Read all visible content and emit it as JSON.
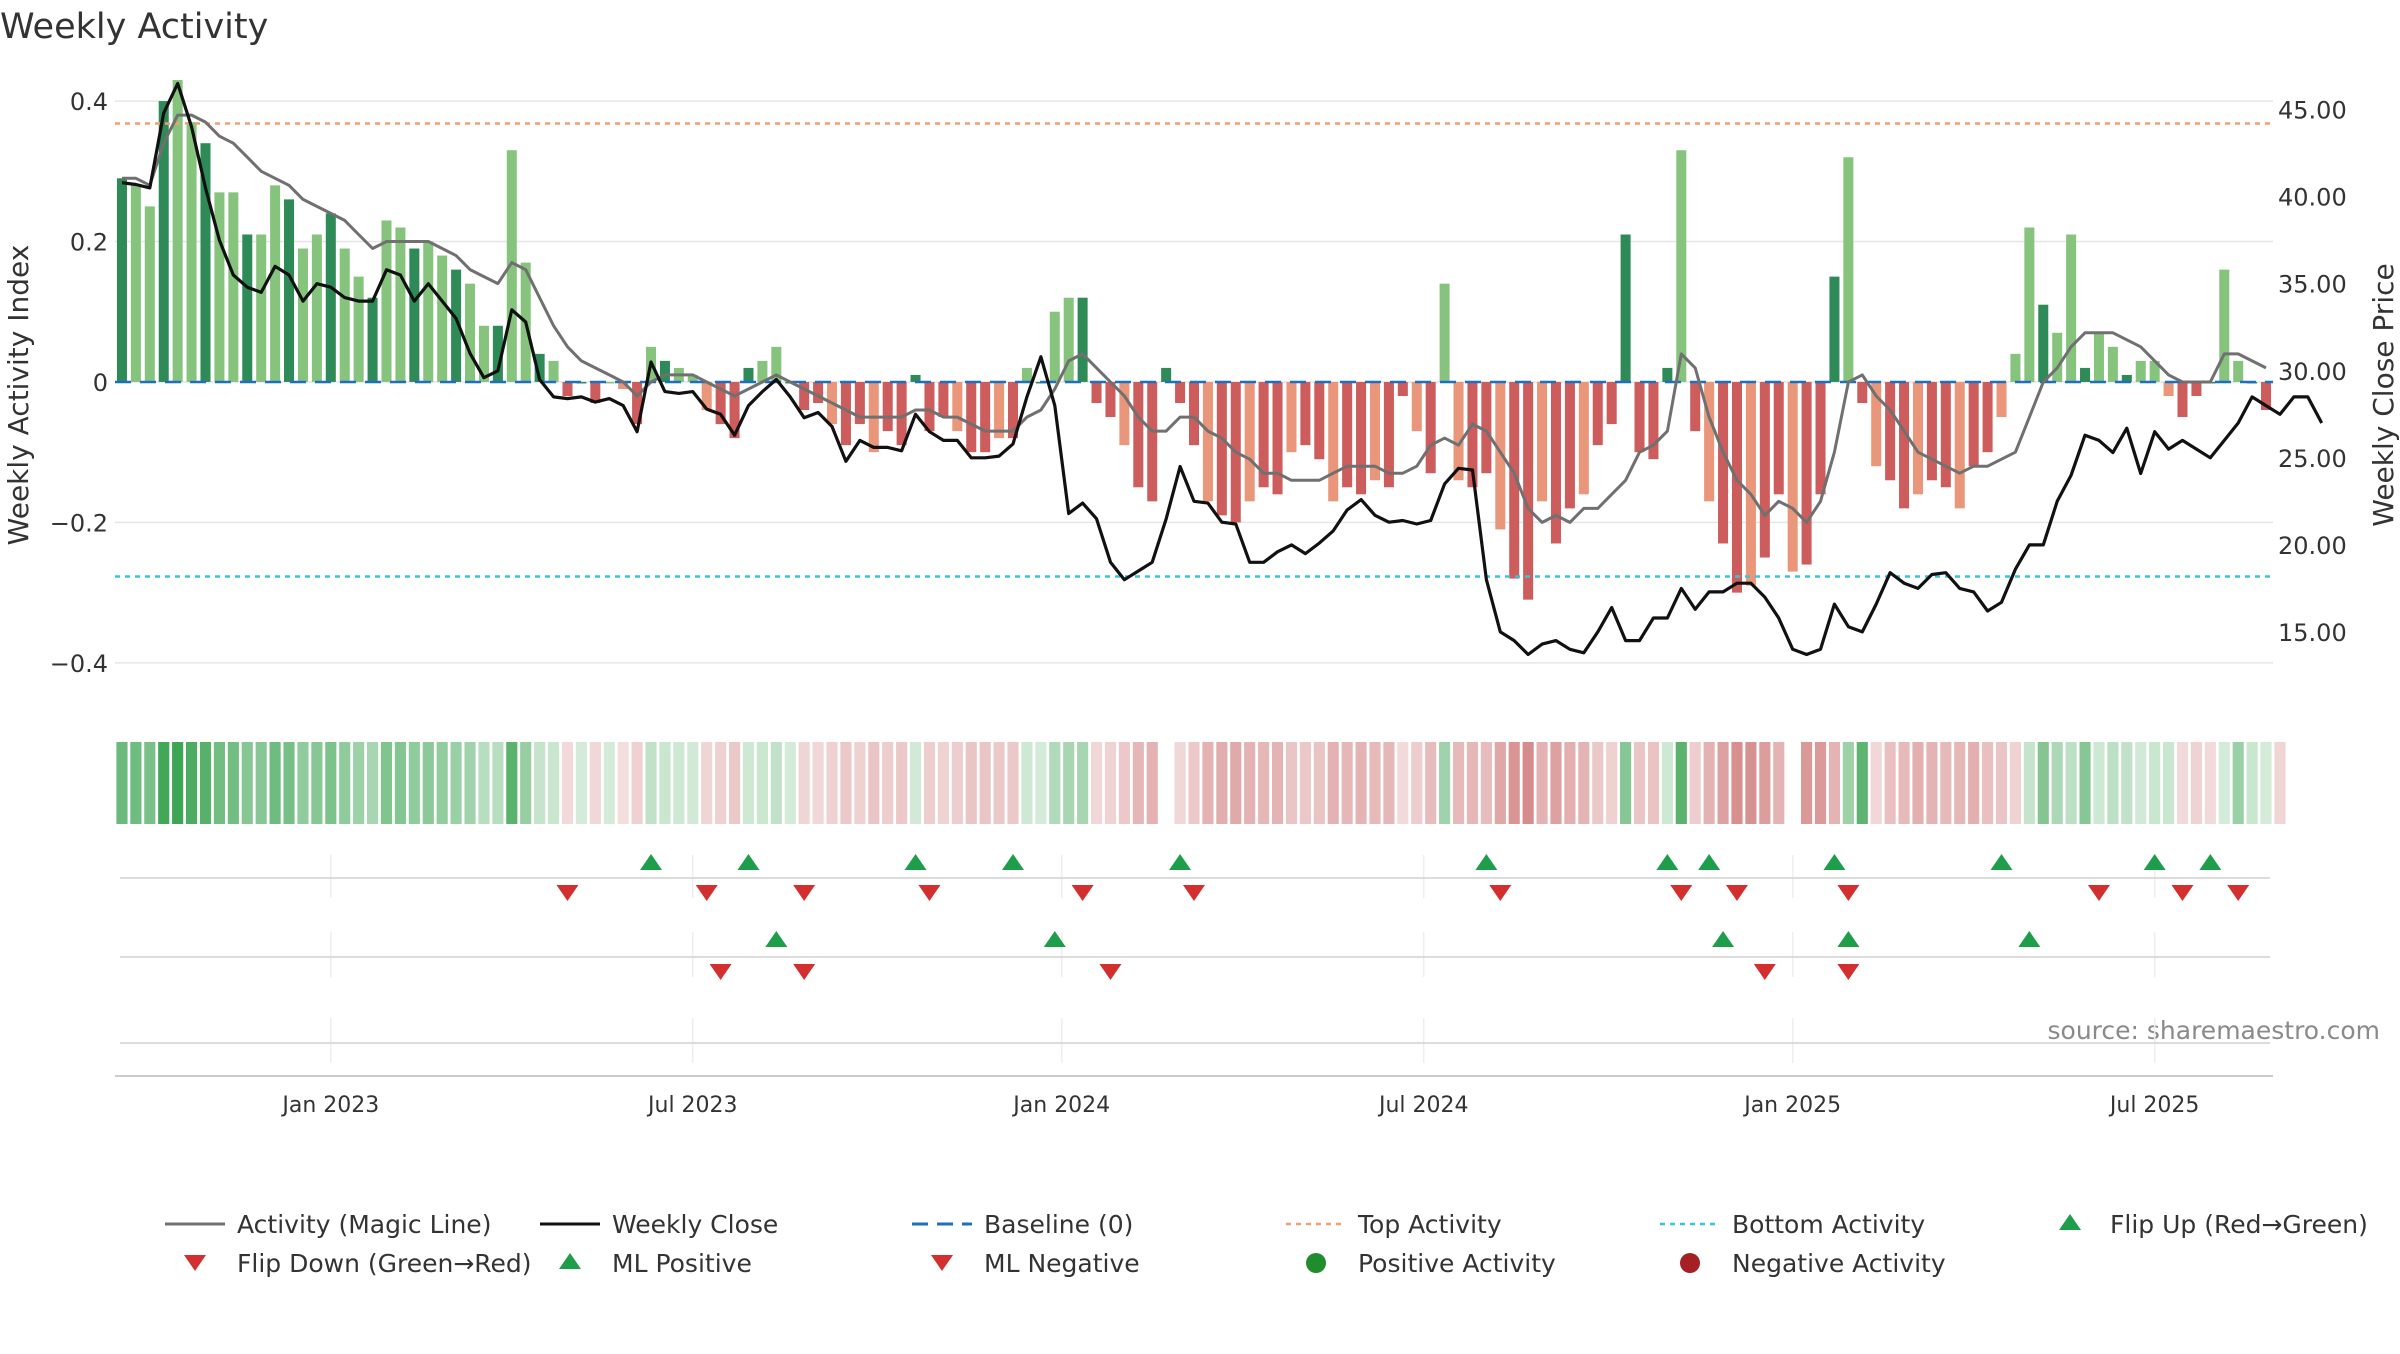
{
  "chart_data": {
    "type": "bar",
    "title": "Weekly Activity",
    "ylabel": "Weekly Activity Index",
    "ylabel_right": "Weekly Close Price",
    "ylim": [
      -0.47,
      0.43
    ],
    "ylim_right": [
      10.4,
      46.7
    ],
    "x_ticks": [
      {
        "label": "Jan 2023",
        "week": 15
      },
      {
        "label": "Jul 2023",
        "week": 41
      },
      {
        "label": "Jan 2024",
        "week": 67.5
      },
      {
        "label": "Jul 2024",
        "week": 93.5
      },
      {
        "label": "Jan 2025",
        "week": 120
      },
      {
        "label": "Jul 2025",
        "week": 146
      }
    ],
    "y_ticks": [
      {
        "value": 0.4,
        "label": "0.4"
      },
      {
        "value": 0.2,
        "label": "0.2"
      },
      {
        "value": 0,
        "label": "0"
      },
      {
        "value": -0.2,
        "label": "−0.2"
      },
      {
        "value": -0.4,
        "label": "−0.4"
      }
    ],
    "y_ticks_right": [
      {
        "value": 45,
        "label": "45.00"
      },
      {
        "value": 40,
        "label": "40.00"
      },
      {
        "value": 35,
        "label": "35.00"
      },
      {
        "value": 30,
        "label": "30.00"
      },
      {
        "value": 25,
        "label": "25.00"
      },
      {
        "value": 20,
        "label": "20.00"
      },
      {
        "value": 15,
        "label": "15.00"
      }
    ],
    "top_activity": 0.368,
    "bottom_activity": -0.277,
    "activity": [
      0.29,
      0.28,
      0.25,
      0.4,
      0.43,
      0.37,
      0.34,
      0.27,
      0.27,
      0.21,
      0.21,
      0.28,
      0.26,
      0.19,
      0.21,
      0.24,
      0.19,
      0.15,
      0.12,
      0.23,
      0.22,
      0.19,
      0.2,
      0.18,
      0.16,
      0.14,
      0.08,
      0.08,
      0.33,
      0.17,
      0.04,
      0.03,
      -0.02,
      0.0,
      -0.03,
      0.0,
      -0.01,
      -0.06,
      0.05,
      0.03,
      0.02,
      0.01,
      -0.04,
      -0.06,
      -0.08,
      0.02,
      0.03,
      0.05,
      0.0,
      -0.04,
      -0.03,
      -0.06,
      -0.09,
      -0.06,
      -0.1,
      -0.07,
      -0.09,
      0.01,
      -0.07,
      -0.05,
      -0.07,
      -0.1,
      -0.1,
      -0.08,
      -0.08,
      0.02,
      0.0,
      0.1,
      0.12,
      0.12,
      -0.03,
      -0.05,
      -0.09,
      -0.15,
      -0.17,
      0.02,
      -0.03,
      -0.09,
      -0.17,
      -0.19,
      -0.2,
      -0.17,
      -0.15,
      -0.16,
      -0.1,
      -0.09,
      -0.11,
      -0.17,
      -0.15,
      -0.16,
      -0.14,
      -0.15,
      -0.02,
      -0.07,
      -0.13,
      0.14,
      -0.14,
      -0.15,
      -0.13,
      -0.21,
      -0.28,
      -0.31,
      -0.17,
      -0.23,
      -0.18,
      -0.16,
      -0.09,
      -0.06,
      0.21,
      -0.1,
      -0.11,
      0.02,
      0.33,
      -0.07,
      -0.17,
      -0.23,
      -0.3,
      -0.29,
      -0.25,
      -0.16,
      -0.27,
      -0.26,
      -0.16,
      0.15,
      0.32,
      -0.03,
      -0.12,
      -0.14,
      -0.18,
      -0.16,
      -0.14,
      -0.15,
      -0.18,
      -0.12,
      -0.1,
      -0.05,
      0.04,
      0.22,
      0.11,
      0.07,
      0.21,
      0.02,
      0.07,
      0.05,
      0.01,
      0.03,
      0.03,
      -0.02,
      -0.05,
      -0.02,
      0.0,
      0.16,
      0.03,
      0.0,
      -0.04
    ],
    "magic_line": [
      0.29,
      0.29,
      0.28,
      0.34,
      0.38,
      0.38,
      0.37,
      0.35,
      0.34,
      0.32,
      0.3,
      0.29,
      0.28,
      0.26,
      0.25,
      0.24,
      0.23,
      0.21,
      0.19,
      0.2,
      0.2,
      0.2,
      0.2,
      0.19,
      0.18,
      0.16,
      0.15,
      0.14,
      0.17,
      0.16,
      0.12,
      0.08,
      0.05,
      0.03,
      0.02,
      0.01,
      0.0,
      -0.02,
      0.0,
      0.01,
      0.01,
      0.01,
      0.0,
      -0.01,
      -0.02,
      -0.01,
      0.0,
      0.01,
      0.0,
      -0.01,
      -0.02,
      -0.03,
      -0.04,
      -0.05,
      -0.05,
      -0.05,
      -0.05,
      -0.04,
      -0.04,
      -0.05,
      -0.05,
      -0.06,
      -0.07,
      -0.07,
      -0.07,
      -0.05,
      -0.04,
      -0.01,
      0.03,
      0.04,
      0.02,
      0.0,
      -0.02,
      -0.05,
      -0.07,
      -0.07,
      -0.05,
      -0.05,
      -0.07,
      -0.08,
      -0.1,
      -0.11,
      -0.13,
      -0.13,
      -0.14,
      -0.14,
      -0.14,
      -0.13,
      -0.12,
      -0.12,
      -0.12,
      -0.13,
      -0.13,
      -0.12,
      -0.09,
      -0.08,
      -0.09,
      -0.06,
      -0.07,
      -0.1,
      -0.13,
      -0.18,
      -0.2,
      -0.19,
      -0.2,
      -0.18,
      -0.18,
      -0.16,
      -0.14,
      -0.1,
      -0.09,
      -0.07,
      0.04,
      0.02,
      -0.05,
      -0.1,
      -0.14,
      -0.16,
      -0.19,
      -0.17,
      -0.18,
      -0.2,
      -0.17,
      -0.1,
      0.0,
      0.01,
      -0.02,
      -0.04,
      -0.07,
      -0.1,
      -0.11,
      -0.12,
      -0.13,
      -0.12,
      -0.12,
      -0.11,
      -0.1,
      -0.05,
      0.0,
      0.02,
      0.05,
      0.07,
      0.07,
      0.07,
      0.06,
      0.05,
      0.03,
      0.01,
      0.0,
      0.0,
      0.0,
      0.04,
      0.04,
      0.03,
      0.02
    ],
    "weekly_close": [
      40.8,
      40.7,
      40.5,
      44.8,
      46.5,
      44.0,
      40.5,
      37.5,
      35.5,
      34.8,
      34.5,
      36.0,
      35.5,
      34.0,
      35.0,
      34.8,
      34.2,
      34.0,
      34.0,
      35.8,
      35.5,
      34.0,
      35.0,
      34.0,
      33.0,
      31.0,
      29.6,
      30.0,
      33.5,
      32.8,
      29.5,
      28.5,
      28.4,
      28.5,
      28.2,
      28.4,
      28.0,
      26.5,
      30.5,
      28.8,
      28.7,
      28.8,
      27.8,
      27.5,
      26.3,
      28.0,
      28.8,
      29.5,
      28.5,
      27.3,
      27.6,
      26.8,
      24.8,
      26.0,
      25.6,
      25.6,
      25.4,
      27.5,
      26.5,
      26.0,
      26.0,
      25.0,
      25.0,
      25.1,
      25.8,
      28.5,
      30.8,
      28.0,
      21.8,
      22.4,
      21.5,
      19.0,
      18.0,
      18.5,
      19.0,
      21.5,
      24.5,
      22.5,
      22.4,
      21.3,
      21.2,
      19.0,
      19.0,
      19.6,
      20.0,
      19.5,
      20.1,
      20.8,
      22.0,
      22.6,
      21.7,
      21.3,
      21.4,
      21.2,
      21.4,
      23.5,
      24.4,
      24.3,
      18.0,
      15.0,
      14.5,
      13.7,
      14.3,
      14.5,
      14.0,
      13.8,
      15.0,
      16.4,
      14.5,
      14.5,
      15.8,
      15.8,
      17.5,
      16.3,
      17.3,
      17.3,
      17.8,
      17.8,
      17.0,
      15.8,
      14.0,
      13.7,
      14.0,
      16.6,
      15.3,
      15.0,
      16.6,
      18.4,
      17.8,
      17.5,
      18.3,
      18.4,
      17.5,
      17.3,
      16.2,
      16.7,
      18.6,
      20.0,
      20.0,
      22.5,
      24.0,
      26.3,
      26.0,
      25.3,
      26.7,
      24.1,
      26.5,
      25.5,
      26.0,
      25.5,
      25.0,
      26.0,
      27.0,
      28.5,
      28.0,
      27.5,
      28.5,
      28.5,
      27.0
    ],
    "heatstrip": [
      0.29,
      0.28,
      0.25,
      0.4,
      0.43,
      0.37,
      0.34,
      0.27,
      0.27,
      0.21,
      0.21,
      0.28,
      0.26,
      0.19,
      0.21,
      0.24,
      0.19,
      0.15,
      0.12,
      0.23,
      0.22,
      0.19,
      0.2,
      0.18,
      0.16,
      0.14,
      0.08,
      0.08,
      0.33,
      0.17,
      0.04,
      0.03,
      -0.02,
      0.0,
      -0.03,
      0.0,
      -0.01,
      -0.06,
      0.05,
      0.03,
      0.02,
      0.01,
      -0.04,
      -0.06,
      -0.08,
      0.02,
      0.03,
      0.05,
      0.0,
      -0.04,
      -0.03,
      -0.06,
      -0.09,
      -0.06,
      -0.1,
      -0.07,
      -0.09,
      0.01,
      -0.07,
      -0.05,
      -0.07,
      -0.1,
      -0.1,
      -0.08,
      -0.08,
      0.02,
      0.0,
      0.1,
      0.12,
      0.12,
      -0.03,
      -0.05,
      -0.09,
      -0.15,
      -0.17,
      null,
      -0.03,
      -0.09,
      -0.17,
      -0.19,
      -0.2,
      -0.17,
      -0.15,
      -0.16,
      -0.1,
      -0.09,
      -0.11,
      -0.17,
      -0.15,
      -0.16,
      -0.14,
      -0.15,
      -0.02,
      -0.07,
      -0.13,
      0.14,
      -0.14,
      -0.15,
      -0.13,
      -0.21,
      -0.28,
      -0.31,
      -0.17,
      -0.23,
      -0.18,
      -0.16,
      -0.09,
      -0.06,
      0.21,
      -0.1,
      -0.11,
      0.02,
      0.33,
      -0.07,
      -0.17,
      -0.23,
      -0.3,
      -0.29,
      -0.25,
      -0.16,
      null,
      -0.27,
      -0.26,
      -0.16,
      0.15,
      0.32,
      -0.03,
      -0.12,
      -0.14,
      -0.18,
      -0.16,
      -0.14,
      -0.15,
      -0.18,
      -0.12,
      -0.1,
      -0.05,
      0.04,
      0.22,
      0.11,
      0.07,
      0.21,
      0.02,
      0.07,
      0.05,
      0.01,
      0.03,
      0.03,
      -0.02,
      -0.05,
      -0.02,
      0.0,
      0.16,
      0.03,
      0.0,
      -0.04
    ],
    "flip_up": [
      38,
      45,
      57,
      64,
      76,
      98,
      111,
      114,
      123,
      135,
      146,
      150
    ],
    "flip_down": [
      32,
      42,
      49,
      58,
      69,
      77,
      99,
      112,
      116,
      124,
      142,
      148,
      152
    ],
    "ml_positive": [
      47,
      67,
      115,
      124,
      137
    ],
    "ml_negative": [
      43,
      49,
      71,
      118,
      124
    ],
    "legend": {
      "row1": [
        "Activity (Magic Line)",
        "Weekly Close",
        "Baseline (0)",
        "Top Activity",
        "Bottom Activity",
        "Flip Up (Red→Green)"
      ],
      "row2": [
        "Flip Down (Green→Red)",
        "ML Positive",
        "ML Negative",
        "Positive Activity",
        "Negative Activity"
      ]
    },
    "source": "source: sharemaestro.com"
  },
  "colors": {
    "pos_dark": "#2e8b57",
    "pos_light": "#86c47e",
    "neg_dark": "#cd5c5c",
    "neg_light": "#e9967a",
    "magic_line": "#707070",
    "close_line": "#111111",
    "baseline": "#1f6fbf",
    "top_line": "#f0a070",
    "bottom_line": "#36c5dd",
    "marker_up": "#1e9e4a",
    "marker_down": "#d32f2f",
    "pos_dot": "#1f8c2e",
    "neg_dot": "#a51f24",
    "grid": "#e6e6e6",
    "source_text": "#8a8a8a"
  }
}
